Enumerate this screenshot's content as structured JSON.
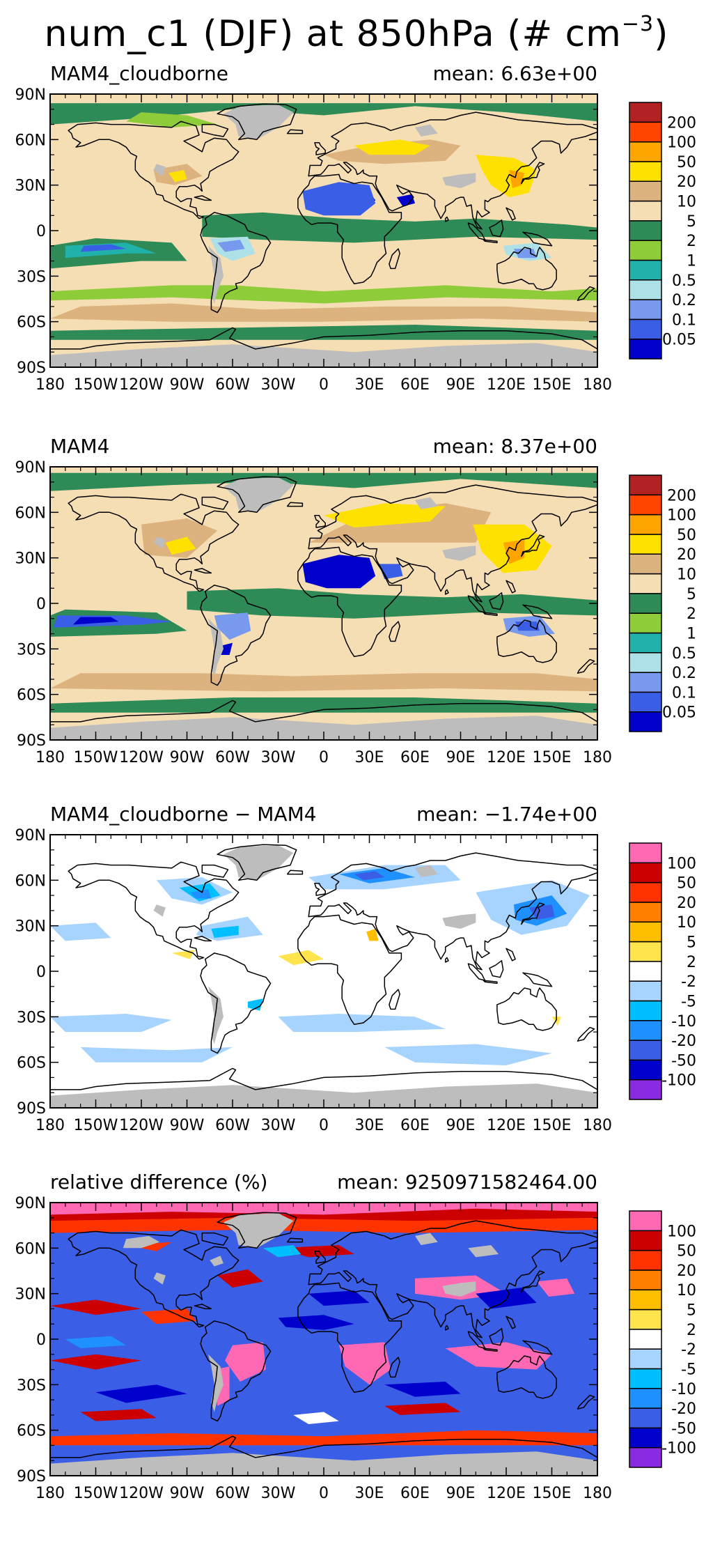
{
  "page": {
    "title_main": "num_c1 (DJF) at 850hPa (# cm",
    "title_exp": "−3",
    "title_close": ")"
  },
  "colors": {
    "land_mask": "#bdbdbd",
    "coast": "#000000"
  },
  "axes": {
    "lat_labels": [
      "90N",
      "60N",
      "30N",
      "0",
      "30S",
      "60S",
      "90S"
    ],
    "lon_labels": [
      "180",
      "150W",
      "120W",
      "90W",
      "60W",
      "30W",
      "0",
      "30E",
      "60E",
      "90E",
      "120E",
      "150E",
      "180"
    ]
  },
  "panels": [
    {
      "left_title": "MAM4_cloudborne",
      "right_title": "mean: 6.63e+00",
      "levels": [
        "0.05",
        "0.1",
        "0.2",
        "0.5",
        "1",
        "2",
        "5",
        "10",
        "20",
        "50",
        "100",
        "200"
      ],
      "colors": [
        "#0000cc",
        "#3a5ee6",
        "#7799ee",
        "#aee0e8",
        "#20b2aa",
        "#8fcc3a",
        "#2e8b57",
        "#f5deb3",
        "#dcb27f",
        "#ffe100",
        "#ffa500",
        "#ff4500",
        "#b22222"
      ],
      "base_color": "#f5deb3"
    },
    {
      "left_title": "MAM4",
      "right_title": "mean: 8.37e+00",
      "levels": [
        "0.05",
        "0.1",
        "0.2",
        "0.5",
        "1",
        "2",
        "5",
        "10",
        "20",
        "50",
        "100",
        "200"
      ],
      "colors": [
        "#0000cc",
        "#3a5ee6",
        "#7799ee",
        "#aee0e8",
        "#20b2aa",
        "#8fcc3a",
        "#2e8b57",
        "#f5deb3",
        "#dcb27f",
        "#ffe100",
        "#ffa500",
        "#ff4500",
        "#b22222"
      ],
      "base_color": "#f5deb3"
    },
    {
      "left_title": "MAM4_cloudborne − MAM4",
      "right_title": "mean: −1.74e+00",
      "levels": [
        "-100",
        "-50",
        "-20",
        "-10",
        "-5",
        "-2",
        "2",
        "5",
        "10",
        "20",
        "50",
        "100"
      ],
      "colors": [
        "#8a2be2",
        "#0000cc",
        "#3a5ee6",
        "#1e90ff",
        "#00bfff",
        "#a6d4ff",
        "#ffffff",
        "#ffe44d",
        "#ffbf00",
        "#ff7f00",
        "#ff3300",
        "#cc0000",
        "#ff69b4"
      ],
      "base_color": "#ffffff"
    },
    {
      "left_title": "relative difference (%)",
      "right_title": "mean: 9250971582464.00",
      "levels": [
        "-100",
        "-50",
        "-20",
        "-10",
        "-5",
        "-2",
        "2",
        "5",
        "10",
        "20",
        "50",
        "100"
      ],
      "colors": [
        "#8a2be2",
        "#0000cc",
        "#3a5ee6",
        "#1e90ff",
        "#00bfff",
        "#a6d4ff",
        "#ffffff",
        "#ffe44d",
        "#ffbf00",
        "#ff7f00",
        "#ff3300",
        "#cc0000",
        "#ff69b4"
      ],
      "base_color": "#3a5ee6"
    }
  ]
}
